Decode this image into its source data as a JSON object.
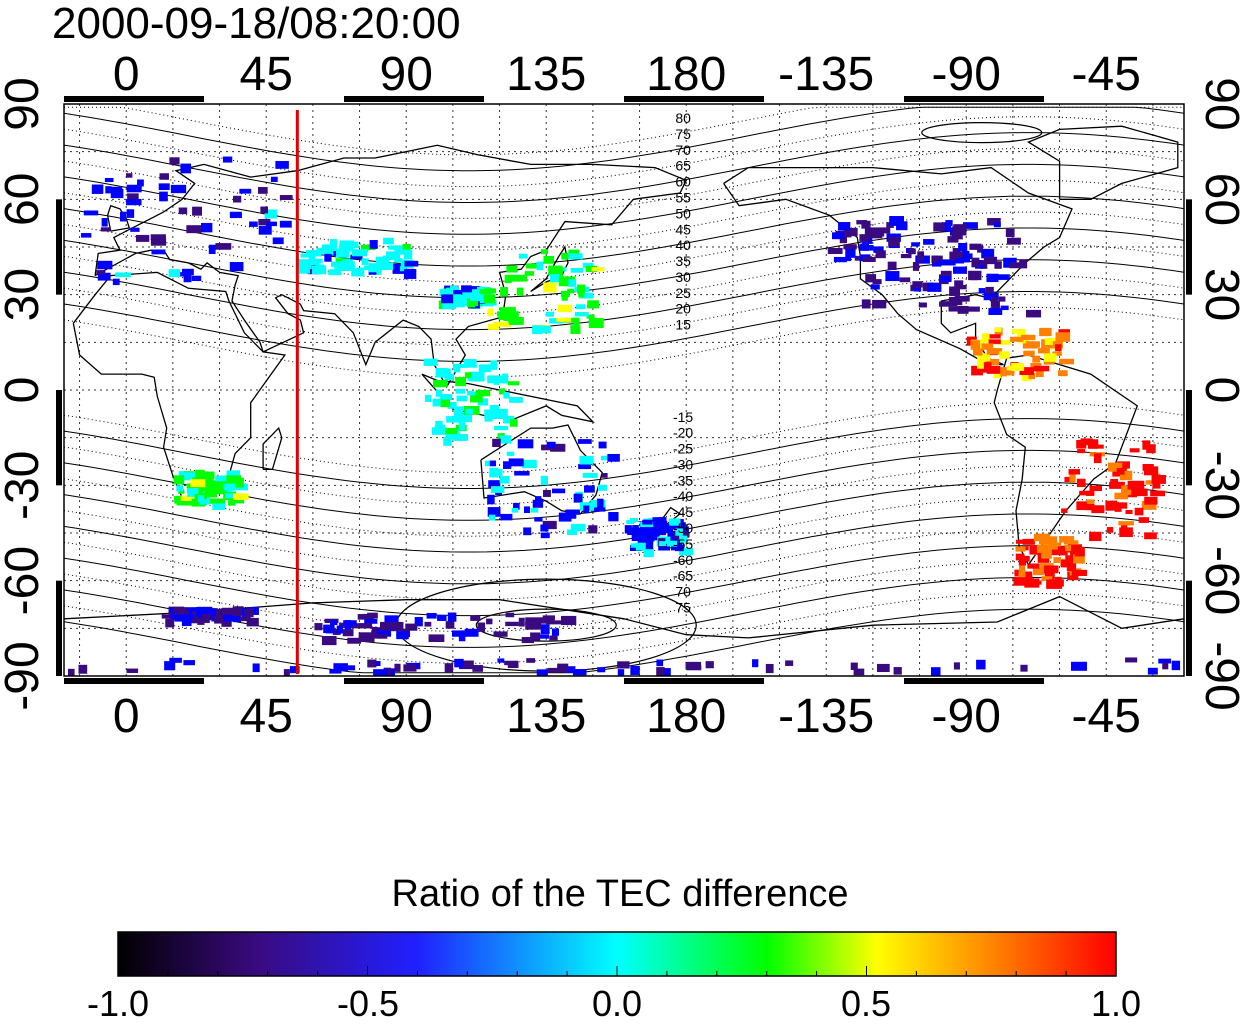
{
  "title": "2000-09-18/08:20:00",
  "map": {
    "x_tick_labels_top": [
      "0",
      "45",
      "90",
      "135",
      "180",
      "-135",
      "-90",
      "-45"
    ],
    "x_tick_labels_bottom": [
      "0",
      "45",
      "90",
      "135",
      "180",
      "-135",
      "-90",
      "-45"
    ],
    "y_tick_labels_left": [
      "90",
      "60",
      "30",
      "0",
      "-30",
      "-60",
      "-90"
    ],
    "y_tick_labels_right": [
      "90",
      "60",
      "30",
      "0",
      "-30",
      "-60",
      "-90"
    ],
    "lon_range": [
      -20,
      340
    ],
    "lat_range": [
      -90,
      90
    ],
    "grid": "dotted",
    "red_marker_longitude": 55,
    "red_marker_color": "#e00000",
    "contour_labels_north": [
      "80",
      "75",
      "70",
      "65",
      "60",
      "55",
      "50",
      "45",
      "40",
      "35",
      "30",
      "25",
      "20",
      "15"
    ],
    "contour_labels_south": [
      "-15",
      "-20",
      "-25",
      "-30",
      "-35",
      "-40",
      "-45",
      "-50",
      "-55",
      "-60",
      "-65",
      "70",
      "75"
    ],
    "data_patches": [
      {
        "region": "Europe",
        "ratio": -0.6
      },
      {
        "region": "Middle East",
        "ratio": -0.2
      },
      {
        "region": "East Asia",
        "ratio": 0.15
      },
      {
        "region": "Southeast Asia",
        "ratio": -0.1
      },
      {
        "region": "Australia",
        "ratio": -0.5
      },
      {
        "region": "Southern Africa",
        "ratio": 0.1
      },
      {
        "region": "North America",
        "ratio": -0.8
      },
      {
        "region": "Central America",
        "ratio": 0.6
      },
      {
        "region": "South America",
        "ratio": 0.9
      },
      {
        "region": "Antarctica",
        "ratio": -0.75
      }
    ]
  },
  "colorbar": {
    "title": "Ratio of the TEC difference",
    "tick_labels": [
      "-1.0",
      "-0.5",
      "0.0",
      "0.5",
      "1.0"
    ],
    "range": [
      -1.0,
      1.0
    ],
    "colors": [
      "#000000",
      "#3a0a80",
      "#0000ff",
      "#00ffff",
      "#00ff00",
      "#ffff00",
      "#ff8000",
      "#ff0000"
    ]
  }
}
